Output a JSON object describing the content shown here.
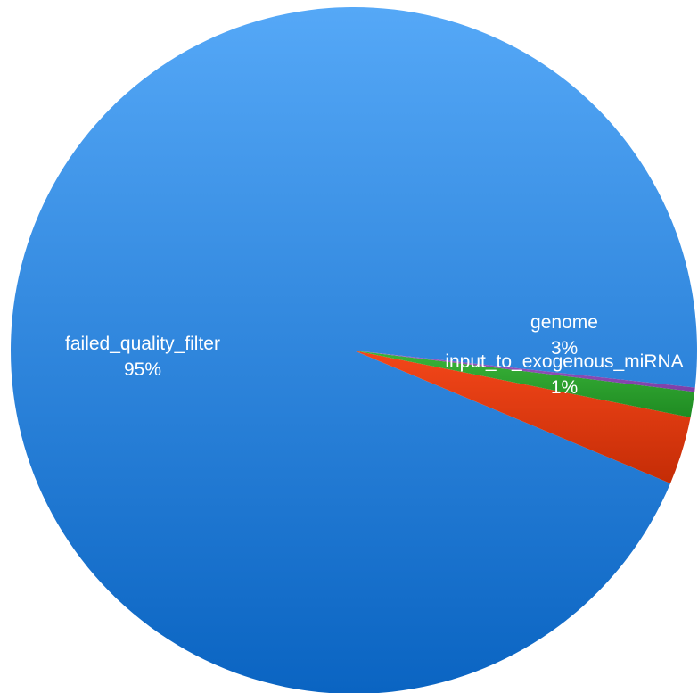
{
  "chart_data": {
    "type": "pie",
    "title": "",
    "start_angle_deg": -6.2,
    "direction": "counterclockwise",
    "slices": [
      {
        "name": "failed_quality_filter",
        "label": "failed_quality_filter",
        "percent_label": "95%",
        "value": 95.4,
        "color_top": "#55a8f7",
        "color_bottom": "#0a64c2"
      },
      {
        "name": "genome",
        "label": "genome",
        "percent_label": "3%",
        "value": 3.2,
        "color_top": "#f4471a",
        "color_bottom": "#c42c06"
      },
      {
        "name": "input_to_exogenous_miRNA",
        "label": "input_to_exogenous_miRNA",
        "percent_label": "1%",
        "value": 1.2,
        "color_top": "#3ab53a",
        "color_bottom": "#1f8b22"
      },
      {
        "name": "other",
        "label": "",
        "percent_label": "",
        "value": 0.2,
        "color_top": "#a05cc4",
        "color_bottom": "#7b3ea6"
      }
    ]
  }
}
